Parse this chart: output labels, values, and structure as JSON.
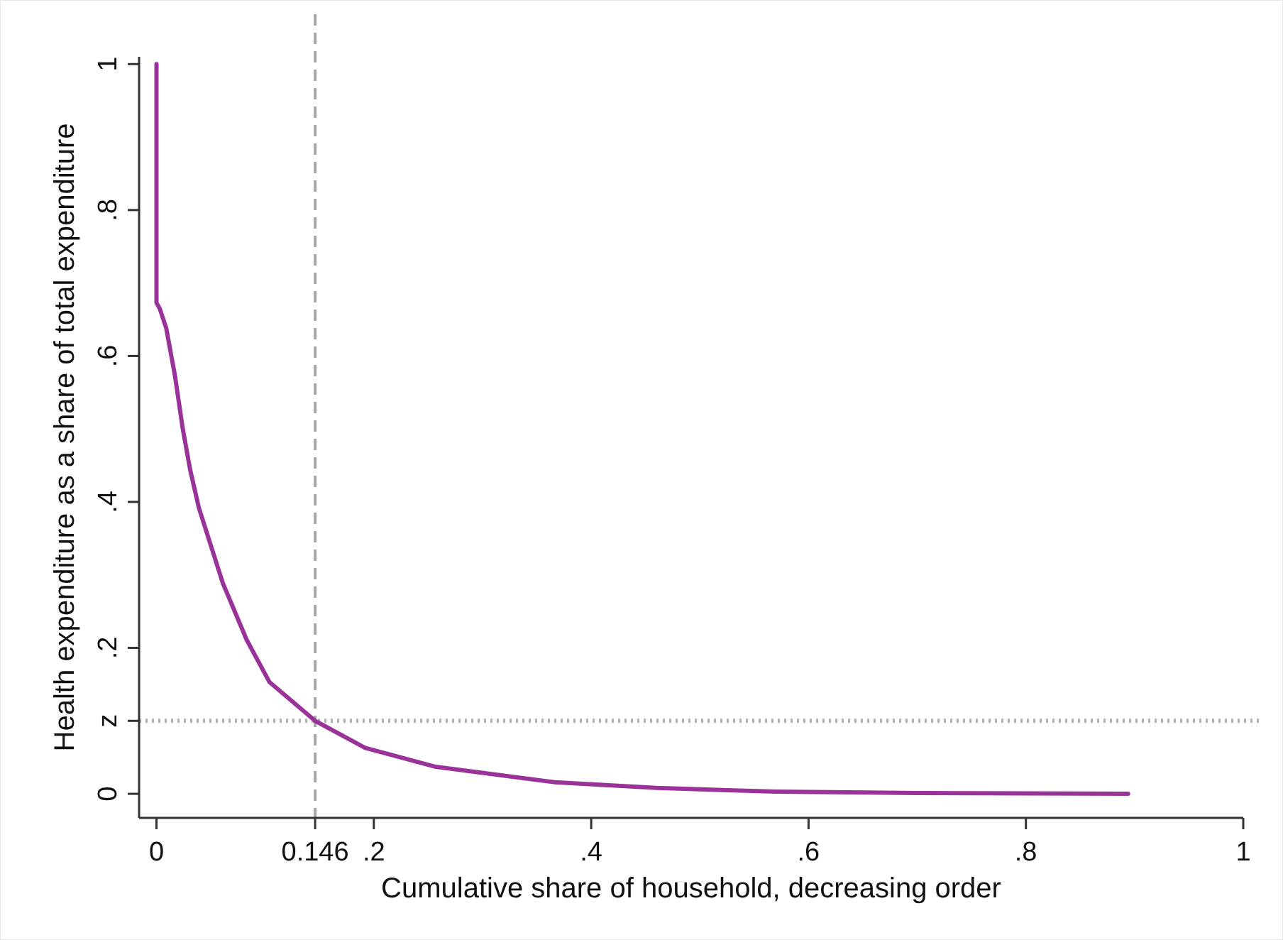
{
  "chart_data": {
    "type": "line",
    "xlabel": "Cumulative share of household, decreasing order",
    "ylabel": "Health expenditure as a share of total expenditure",
    "x": [
      0,
      0,
      0.003,
      0.009,
      0.017,
      0.024,
      0.031,
      0.039,
      0.061,
      0.083,
      0.104,
      0.146,
      0.192,
      0.257,
      0.366,
      0.46,
      0.57,
      0.7,
      0.894
    ],
    "series": [
      {
        "color": "#993399",
        "values": [
          1,
          0.673,
          0.665,
          0.638,
          0.573,
          0.502,
          0.444,
          0.392,
          0.289,
          0.211,
          0.153,
          0.1,
          0.063,
          0.037,
          0.016,
          0.008,
          0.003,
          0.001,
          0
        ]
      }
    ],
    "xlim": [
      -0.016,
      1
    ],
    "ylim": [
      -0.033,
      1.01
    ],
    "xticks": [
      {
        "value": 0,
        "label": "0"
      },
      0.146,
      {
        "value": 0.2,
        "label": ".2"
      },
      {
        "value": 0.4,
        "label": ".4"
      },
      {
        "value": 0.6,
        "label": ".6"
      },
      {
        "value": 0.8,
        "label": ".8"
      },
      {
        "value": 1,
        "label": "1"
      }
    ],
    "yticks": [
      {
        "value": 0,
        "label": "0"
      },
      {
        "value": 0.1,
        "label": "z"
      },
      {
        "value": 0.2,
        "label": ".2"
      },
      {
        "value": 0.4,
        "label": ".4"
      },
      {
        "value": 0.6,
        "label": ".6"
      },
      {
        "value": 0.8,
        "label": ".8"
      },
      {
        "value": 1,
        "label": "1"
      }
    ],
    "ref_lines": [
      {
        "axis": "x",
        "value": 0.146,
        "color": "#a6a6a6",
        "line_style": "dashed"
      },
      {
        "axis": "y",
        "value": 0.1,
        "color": "#b3b3b3",
        "line_style": "dotted"
      }
    ],
    "grid": false,
    "marker": "none",
    "line_style": "solid"
  }
}
